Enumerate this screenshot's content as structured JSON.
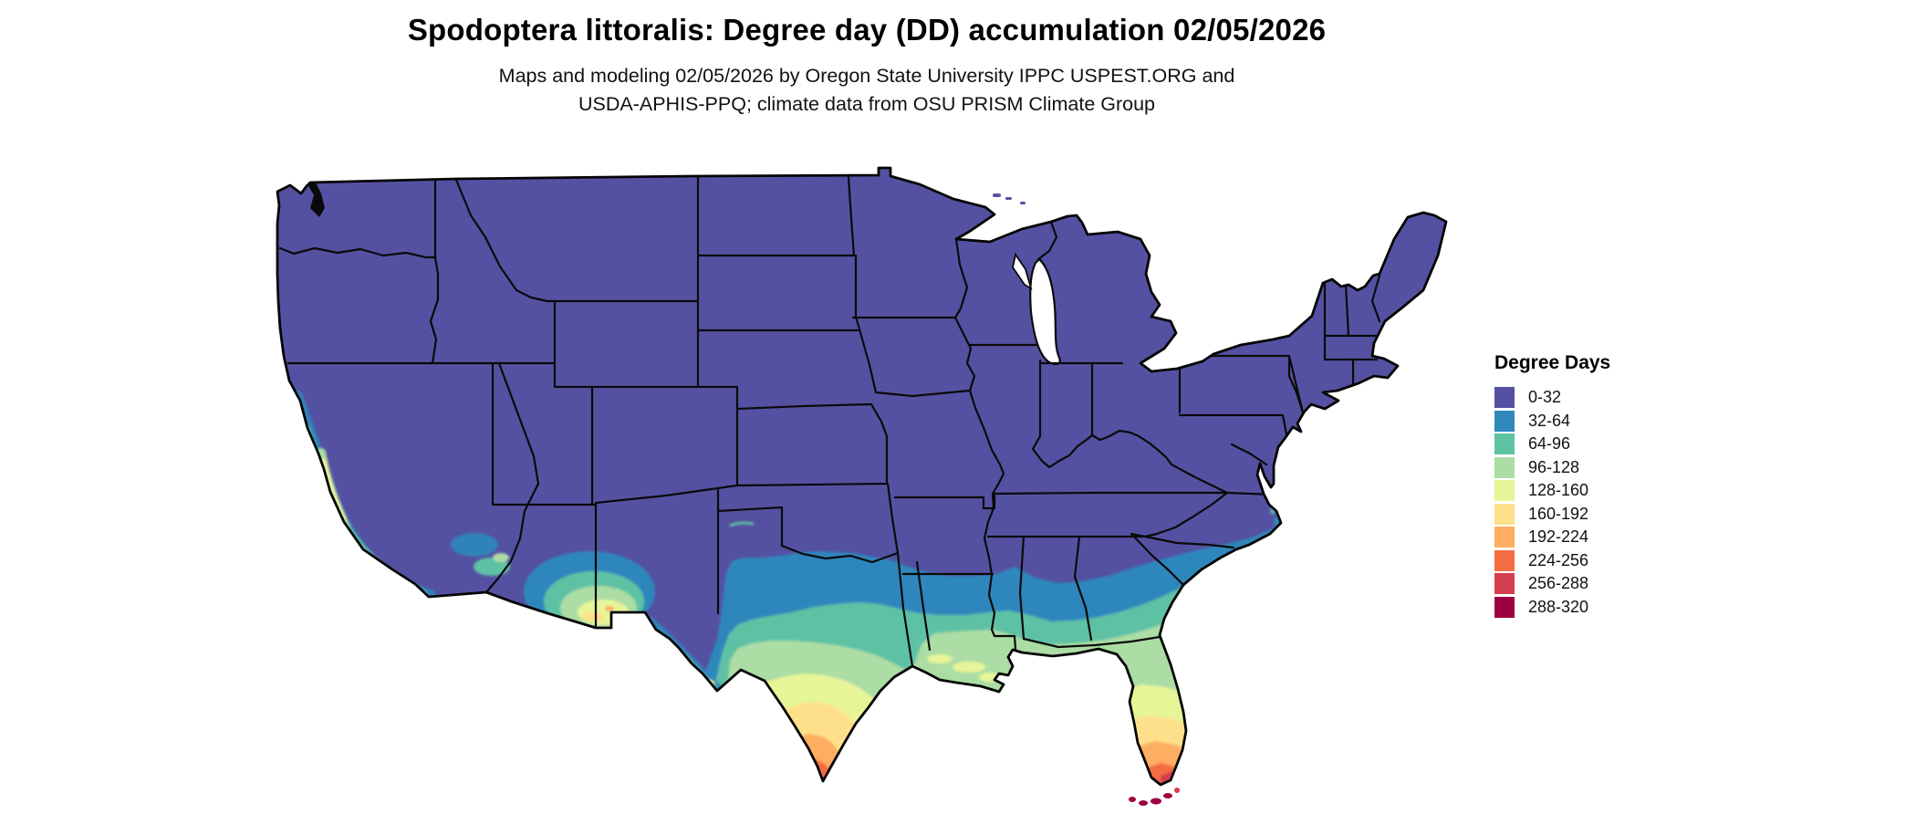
{
  "header": {
    "title": "Spodoptera littoralis: Degree day (DD) accumulation 02/05/2026",
    "subtitle_line1": "Maps and modeling 02/05/2026 by Oregon State University IPPC USPEST.ORG and",
    "subtitle_line2": "USDA-APHIS-PPQ; climate data from OSU PRISM Climate Group"
  },
  "legend": {
    "title": "Degree Days",
    "classes": [
      {
        "label": "0-32",
        "color": "#5551a2"
      },
      {
        "label": "32-64",
        "color": "#2f87bc"
      },
      {
        "label": "64-96",
        "color": "#5fc1a4"
      },
      {
        "label": "96-128",
        "color": "#abdda4"
      },
      {
        "label": "128-160",
        "color": "#e6f598"
      },
      {
        "label": "160-192",
        "color": "#fee08b"
      },
      {
        "label": "192-224",
        "color": "#fdae61"
      },
      {
        "label": "224-256",
        "color": "#f46d43"
      },
      {
        "label": "256-288",
        "color": "#d53e4f"
      },
      {
        "label": "288-320",
        "color": "#9e0142"
      }
    ]
  },
  "map": {
    "background": "#ffffff",
    "state_border_color": "#0a0a0a",
    "outline_color": "#050505",
    "lake_color": "#ffffff",
    "base_class_label": "0-32"
  }
}
